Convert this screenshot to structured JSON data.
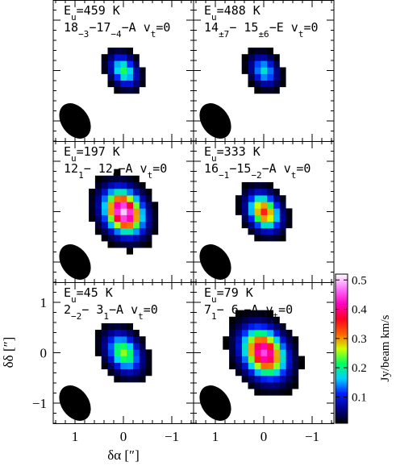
{
  "chart_data": {
    "type": "heatmap",
    "xlabel": "δα [″]",
    "ylabel": "δδ [″]",
    "xlim": [
      1.45,
      -1.45
    ],
    "ylim": [
      -1.4,
      1.4
    ],
    "xticks": [
      1,
      0,
      {
        "value": -1,
        "label": "−1"
      }
    ],
    "yticks": [
      {
        "value": -1,
        "label": "−1"
      },
      0,
      1
    ],
    "colorbar": {
      "label": "Jy/beam km/s",
      "clim": [
        0.01,
        0.52
      ],
      "ticks": [
        0.1,
        0.2,
        0.3,
        0.4,
        0.5
      ],
      "colormap": [
        "#000000",
        "#000090",
        "#0020ff",
        "#00d0ff",
        "#00ff60",
        "#d0ff00",
        "#ff6000",
        "#ff0020",
        "#ff00c0",
        "#ff70ff",
        "#ffffff"
      ]
    },
    "panels": [
      {
        "energy": [
          "E",
          "u",
          "=459 K"
        ],
        "transition": [
          "18",
          "−3",
          "−17",
          "−4",
          "−A v",
          "t",
          "=0"
        ],
        "peak": 0.22,
        "sigma_major": 0.22,
        "sigma_minor": 0.16,
        "position_angle": 35
      },
      {
        "energy": [
          "E",
          "u",
          "=488 K"
        ],
        "transition": [
          "14",
          "±7",
          "− 15",
          "±6",
          "−E v",
          "t",
          "=0"
        ],
        "peak": 0.18,
        "sigma_major": 0.21,
        "sigma_minor": 0.16,
        "position_angle": 35
      },
      {
        "energy": [
          "E",
          "u",
          "=197 K"
        ],
        "transition": [
          "12",
          "1",
          "− 12",
          "0",
          "−A v",
          "t",
          "=0"
        ],
        "peak": 0.5,
        "sigma_major": 0.3,
        "sigma_minor": 0.24,
        "position_angle": 35
      },
      {
        "energy": [
          "E",
          "u",
          "=333 K"
        ],
        "transition": [
          "16",
          "−1",
          "−15",
          "−2",
          "−A v",
          "t",
          "=0"
        ],
        "peak": 0.35,
        "sigma_major": 0.25,
        "sigma_minor": 0.19,
        "position_angle": 35
      },
      {
        "energy": [
          "E",
          "u",
          "=45 K"
        ],
        "transition": [
          "2",
          "−2",
          "− 3",
          "1",
          "−A v",
          "t",
          "=0"
        ],
        "peak": 0.25,
        "sigma_major": 0.28,
        "sigma_minor": 0.2,
        "position_angle": 35
      },
      {
        "energy": [
          "E",
          "u",
          "=79 K"
        ],
        "transition": [
          "7",
          "1",
          "− 6",
          "1",
          "−A v",
          "t",
          "=0"
        ],
        "peak": 0.45,
        "sigma_major": 0.34,
        "sigma_minor": 0.26,
        "position_angle": 35
      }
    ]
  }
}
